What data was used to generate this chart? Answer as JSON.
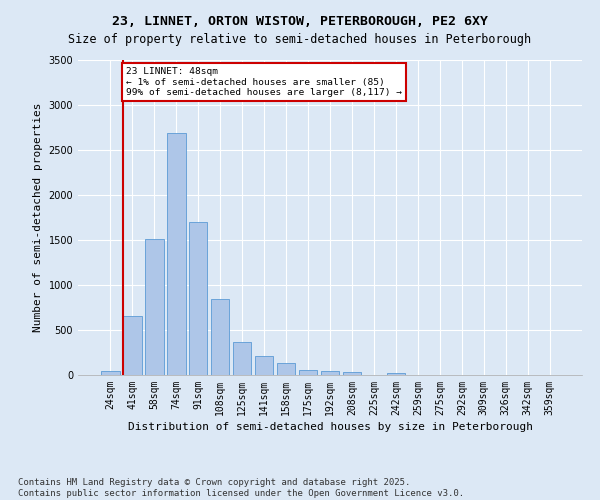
{
  "title": "23, LINNET, ORTON WISTOW, PETERBOROUGH, PE2 6XY",
  "subtitle": "Size of property relative to semi-detached houses in Peterborough",
  "xlabel": "Distribution of semi-detached houses by size in Peterborough",
  "ylabel": "Number of semi-detached properties",
  "categories": [
    "24sqm",
    "41sqm",
    "58sqm",
    "74sqm",
    "91sqm",
    "108sqm",
    "125sqm",
    "141sqm",
    "158sqm",
    "175sqm",
    "192sqm",
    "208sqm",
    "225sqm",
    "242sqm",
    "259sqm",
    "275sqm",
    "292sqm",
    "309sqm",
    "326sqm",
    "342sqm",
    "359sqm"
  ],
  "values": [
    50,
    660,
    1510,
    2690,
    1700,
    850,
    370,
    210,
    135,
    60,
    40,
    30,
    5,
    20,
    0,
    0,
    0,
    0,
    0,
    0,
    0
  ],
  "bar_color": "#aec6e8",
  "bar_edge_color": "#5b9bd5",
  "vline_x": 0.575,
  "vline_color": "#cc0000",
  "annotation_text": "23 LINNET: 48sqm\n← 1% of semi-detached houses are smaller (85)\n99% of semi-detached houses are larger (8,117) →",
  "annotation_box_color": "#ffffff",
  "annotation_box_edge_color": "#cc0000",
  "ylim": [
    0,
    3500
  ],
  "yticks": [
    0,
    500,
    1000,
    1500,
    2000,
    2500,
    3000,
    3500
  ],
  "background_color": "#dce8f5",
  "plot_background": "#dce8f5",
  "footer": "Contains HM Land Registry data © Crown copyright and database right 2025.\nContains public sector information licensed under the Open Government Licence v3.0.",
  "title_fontsize": 9.5,
  "subtitle_fontsize": 8.5,
  "axis_label_fontsize": 8,
  "tick_fontsize": 7,
  "footer_fontsize": 6.5
}
